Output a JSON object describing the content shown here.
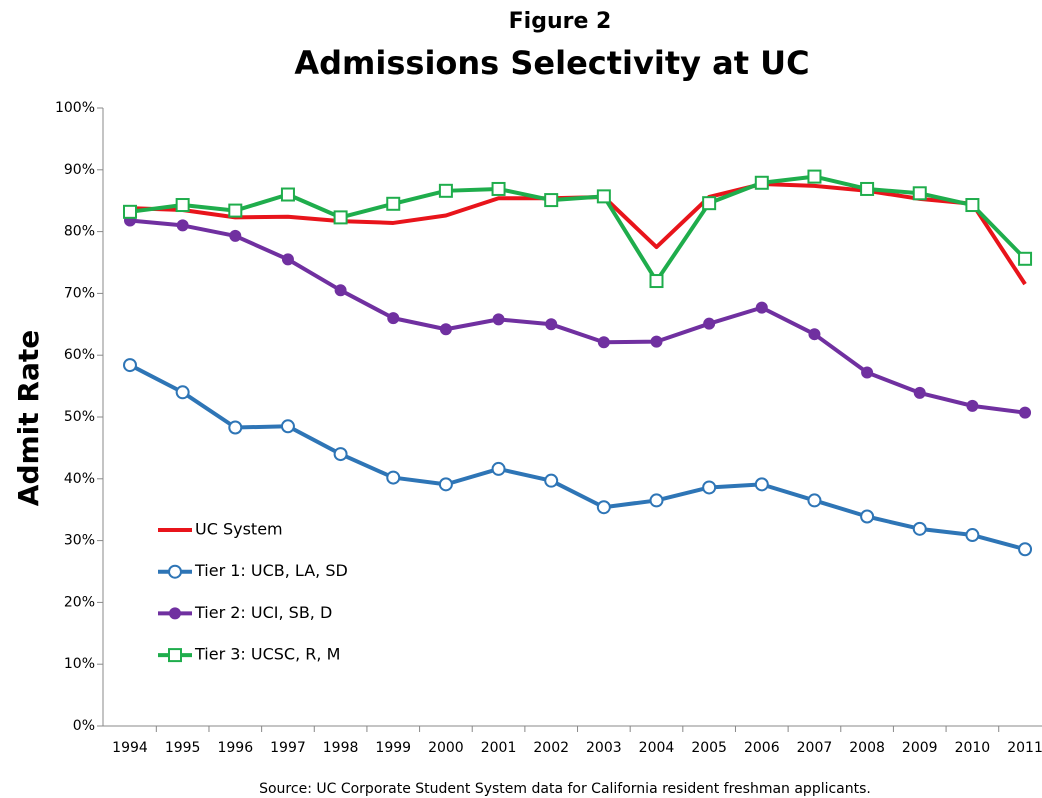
{
  "chart_data": {
    "type": "line",
    "title": "Admissions Selectivity at UC",
    "subtitle": "Figure 2",
    "y_label": "Admit Rate",
    "source": "Source:  UC Corporate Student System data for California resident freshman applicants.",
    "categories": [
      "1994",
      "1995",
      "1996",
      "1997",
      "1998",
      "1999",
      "2000",
      "2001",
      "2002",
      "2003",
      "2004",
      "2005",
      "2006",
      "2007",
      "2008",
      "2009",
      "2010",
      "2011"
    ],
    "series": [
      {
        "name": "UC System",
        "color": "#e8141b",
        "marker": "none",
        "values": [
          83.8,
          83.5,
          82.3,
          82.4,
          81.7,
          81.4,
          82.6,
          85.4,
          85.4,
          85.6,
          77.5,
          85.6,
          87.7,
          87.4,
          86.6,
          85.3,
          84.5,
          71.5
        ]
      },
      {
        "name": "Tier 1: UCB, LA, SD",
        "color": "#2e75b6",
        "marker": "open-circle",
        "values": [
          58.4,
          54.0,
          48.3,
          48.5,
          44.0,
          40.2,
          39.1,
          41.6,
          39.7,
          35.4,
          36.5,
          38.6,
          39.1,
          36.5,
          33.9,
          31.9,
          30.9,
          28.6
        ]
      },
      {
        "name": "Tier 2: UCI, SB, D",
        "color": "#7030a0",
        "marker": "filled-circle",
        "values": [
          81.8,
          81.0,
          79.3,
          75.5,
          70.5,
          66.0,
          64.2,
          65.8,
          65.0,
          62.1,
          62.2,
          65.1,
          67.7,
          63.4,
          57.2,
          53.9,
          51.8,
          50.7
        ]
      },
      {
        "name": "Tier 3: UCSC, R, M",
        "color": "#1fad4c",
        "marker": "open-square",
        "values": [
          83.2,
          84.3,
          83.4,
          86.0,
          82.3,
          84.5,
          86.6,
          86.9,
          85.1,
          85.7,
          72.0,
          84.6,
          87.9,
          88.9,
          86.9,
          86.2,
          84.3,
          75.6
        ]
      }
    ],
    "ylim": [
      0,
      100
    ],
    "yticks": [
      {
        "value": 0,
        "label": "0%"
      },
      {
        "value": 10,
        "label": "10%"
      },
      {
        "value": 20,
        "label": "20%"
      },
      {
        "value": 30,
        "label": "30%"
      },
      {
        "value": 40,
        "label": "40%"
      },
      {
        "value": 50,
        "label": "50%"
      },
      {
        "value": 60,
        "label": "60%"
      },
      {
        "value": 70,
        "label": "70%"
      },
      {
        "value": 80,
        "label": "80%"
      },
      {
        "value": 90,
        "label": "90%"
      },
      {
        "value": 100,
        "label": "100%"
      }
    ],
    "grid": false
  }
}
